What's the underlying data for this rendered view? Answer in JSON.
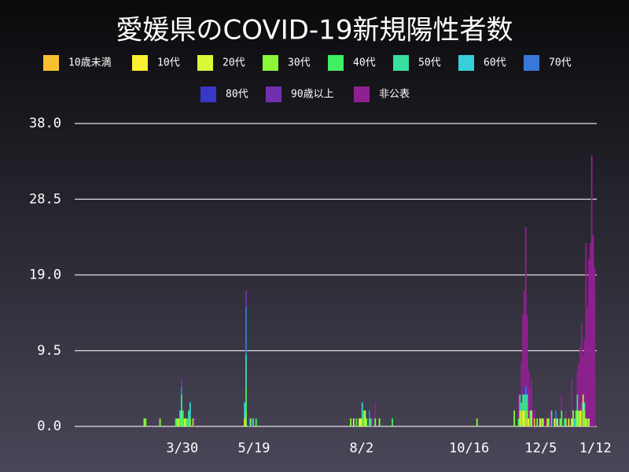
{
  "chart_data": {
    "type": "stacked-bar",
    "title": "愛媛県のCOVID-19新規陽性者数",
    "xlim": [
      15,
      379
    ],
    "xticks": [
      {
        "value": 90,
        "label": "3/30"
      },
      {
        "value": 140,
        "label": "5/19"
      },
      {
        "value": 215,
        "label": "8/2"
      },
      {
        "value": 290,
        "label": "10/16"
      },
      {
        "value": 340,
        "label": "12/5"
      },
      {
        "value": 378,
        "label": "1/12"
      }
    ],
    "ylim": [
      0,
      38
    ],
    "yticks": [
      {
        "value": 0,
        "label": "0.0"
      },
      9.5,
      {
        "value": 19,
        "label": "19.0"
      },
      28.5,
      {
        "value": 38,
        "label": "38.0"
      }
    ],
    "grid": true,
    "series": [
      {
        "name": "10歳未満",
        "color": "#f8c030",
        "x": [
          330,
          336,
          345,
          358,
          370
        ],
        "values": [
          1,
          1,
          1,
          1,
          2
        ]
      },
      {
        "name": "10代",
        "color": "#f8f030",
        "x": [
          215,
          328,
          332,
          340,
          350,
          362,
          368,
          372
        ],
        "values": [
          1,
          2,
          1,
          1,
          1,
          1,
          2,
          1
        ]
      },
      {
        "name": "20代",
        "color": "#d8f838",
        "x": [
          88,
          92,
          134,
          210,
          214,
          218,
          326,
          329,
          334,
          342,
          352,
          360,
          366,
          370,
          374
        ],
        "values": [
          1,
          1,
          1,
          1,
          1,
          2,
          2,
          2,
          2,
          1,
          1,
          1,
          2,
          2,
          1
        ]
      },
      {
        "name": "30代",
        "color": "#88f838",
        "x": [
          64,
          65,
          75,
          87,
          90,
          93,
          96,
          98,
          135,
          138,
          208,
          216,
          219,
          225,
          228,
          296,
          322,
          327,
          331,
          338,
          346,
          354,
          363,
          367,
          371
        ],
        "values": [
          1,
          1,
          1,
          1,
          2,
          1,
          1,
          1,
          2,
          1,
          1,
          1,
          1,
          1,
          1,
          1,
          2,
          2,
          2,
          1,
          1,
          1,
          2,
          2,
          2
        ]
      },
      {
        "name": "40代",
        "color": "#40f060",
        "x": [
          86,
          89,
          91,
          94,
          135,
          140,
          142,
          212,
          217,
          221,
          237,
          325,
          328,
          330,
          333,
          341,
          348,
          355,
          365,
          369,
          373
        ],
        "values": [
          1,
          1,
          2,
          1,
          3,
          1,
          1,
          1,
          2,
          1,
          1,
          1,
          2,
          2,
          2,
          1,
          1,
          2,
          2,
          2,
          1
        ]
      },
      {
        "name": "50代",
        "color": "#38e0a0",
        "x": [
          90,
          95,
          135,
          216,
          222,
          326,
          329,
          331,
          348,
          357,
          366,
          371
        ],
        "values": [
          2,
          2,
          3,
          1,
          1,
          2,
          2,
          2,
          1,
          1,
          2,
          1
        ]
      },
      {
        "name": "60代",
        "color": "#38d0d8",
        "x": [
          89,
          96,
          134,
          135,
          216,
          327,
          330,
          351,
          364
        ],
        "values": [
          1,
          2,
          2,
          1,
          1,
          1,
          1,
          1,
          1
        ]
      },
      {
        "name": "70代",
        "color": "#3878d8",
        "x": [
          90,
          135,
          139,
          221,
          330,
          351,
          369
        ],
        "values": [
          1,
          6,
          1,
          1,
          1,
          1,
          1
        ]
      },
      {
        "name": "80代",
        "color": "#3838c8",
        "x": [
          137,
          329,
          349
        ],
        "values": [
          1,
          1,
          1
        ]
      },
      {
        "name": "90歳以上",
        "color": "#7030b0",
        "x": [
          90,
          135,
          223,
          331
        ],
        "values": [
          1,
          2,
          1,
          1
        ]
      },
      {
        "name": "非公表",
        "color": "#902090",
        "x": [
          99,
          225,
          325,
          327,
          328,
          329,
          330,
          331,
          332,
          333,
          334,
          335,
          336,
          343,
          347,
          355,
          358,
          362,
          366,
          367,
          368,
          369,
          370,
          371,
          372,
          373,
          374,
          375,
          376,
          377,
          378
        ],
        "values": [
          1,
          2,
          3,
          5,
          10,
          12,
          20,
          9,
          6,
          3,
          4,
          2,
          1,
          1,
          2,
          2,
          1,
          5,
          3,
          6,
          8,
          10,
          5,
          8,
          22,
          14,
          20,
          23,
          34,
          24,
          20
        ]
      }
    ]
  }
}
